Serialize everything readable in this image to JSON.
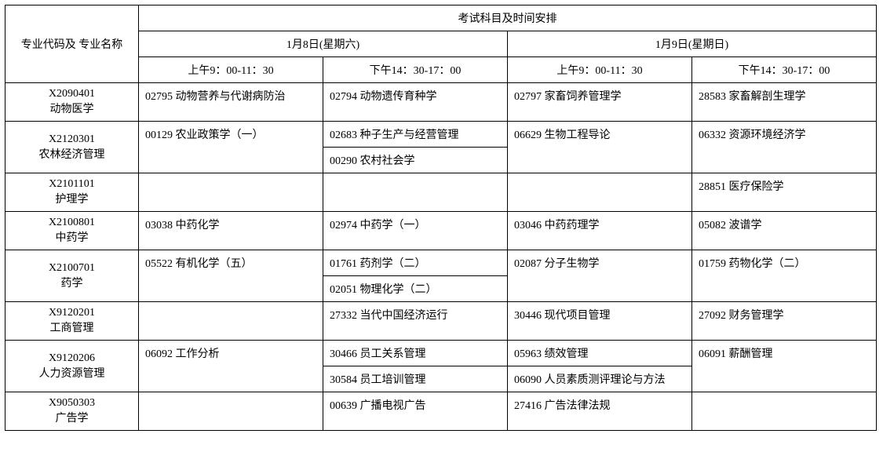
{
  "header": {
    "major_col": "专业代码及\n专业名称",
    "schedule_title": "考试科目及时间安排",
    "day1": "1月8日(星期六)",
    "day2": "1月9日(星期日)",
    "slot1": "上午9：00-11：30",
    "slot2": "下午14：30-17：00",
    "slot3": "上午9：00-11：30",
    "slot4": "下午14：30-17：00"
  },
  "rows": [
    {
      "major": "X2090401\n动物医学",
      "span": 1,
      "cells": [
        [
          "02795 动物营养与代谢病防治"
        ],
        [
          "02794 动物遗传育种学"
        ],
        [
          "02797 家畜饲养管理学"
        ],
        [
          "28583 家畜解剖生理学"
        ]
      ]
    },
    {
      "major": "X2120301\n农林经济管理",
      "span": 2,
      "cells": [
        [
          "00129 农业政策学（一）",
          ""
        ],
        [
          "02683 种子生产与经营管理",
          "00290 农村社会学"
        ],
        [
          "06629 生物工程导论",
          ""
        ],
        [
          "06332 资源环境经济学",
          ""
        ]
      ]
    },
    {
      "major": "X2101101\n护理学",
      "span": 1,
      "cells": [
        [
          ""
        ],
        [
          ""
        ],
        [
          ""
        ],
        [
          "28851 医疗保险学"
        ]
      ]
    },
    {
      "major": "X2100801\n中药学",
      "span": 1,
      "cells": [
        [
          "03038 中药化学"
        ],
        [
          "02974 中药学（一）"
        ],
        [
          "03046 中药药理学"
        ],
        [
          "05082 波谱学"
        ]
      ]
    },
    {
      "major": "X2100701\n药学",
      "span": 2,
      "cells": [
        [
          "05522 有机化学（五）",
          ""
        ],
        [
          "01761 药剂学（二）",
          "02051 物理化学（二）"
        ],
        [
          "02087 分子生物学",
          ""
        ],
        [
          "01759 药物化学（二）",
          ""
        ]
      ]
    },
    {
      "major": "X9120201\n工商管理",
      "span": 1,
      "cells": [
        [
          ""
        ],
        [
          "27332 当代中国经济运行"
        ],
        [
          "30446 现代项目管理"
        ],
        [
          "27092 财务管理学"
        ]
      ]
    },
    {
      "major": "X9120206\n人力资源管理",
      "span": 2,
      "cells": [
        [
          "06092 工作分析",
          ""
        ],
        [
          "30466 员工关系管理",
          "30584 员工培训管理"
        ],
        [
          "05963 绩效管理",
          "06090 人员素质测评理论与方法"
        ],
        [
          "06091 薪酬管理",
          ""
        ]
      ]
    },
    {
      "major": "X9050303\n广告学",
      "span": 1,
      "cells": [
        [
          ""
        ],
        [
          "00639 广播电视广告"
        ],
        [
          "27416 广告法律法规"
        ],
        [
          ""
        ]
      ]
    }
  ]
}
